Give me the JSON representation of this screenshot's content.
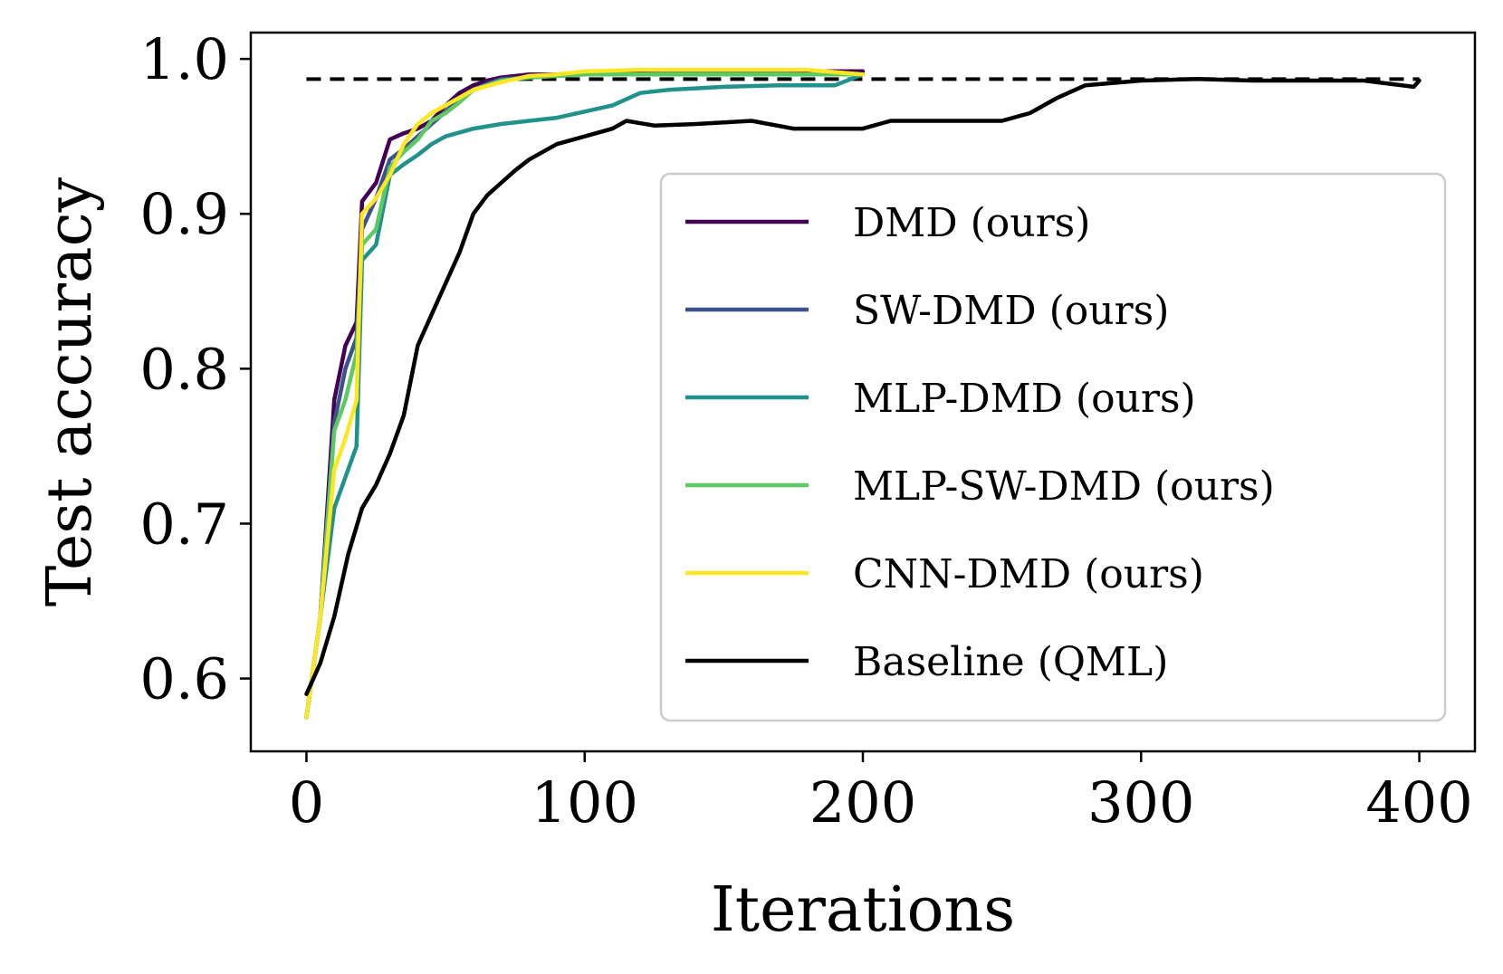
{
  "chart_data": {
    "type": "line",
    "xlabel": "Iterations",
    "ylabel": "Test accuracy",
    "xlim": [
      -20,
      420
    ],
    "ylim": [
      0.553,
      1.017
    ],
    "xticks": [
      0,
      100,
      200,
      300,
      400
    ],
    "xtick_labels": [
      "0",
      "100",
      "200",
      "300",
      "400"
    ],
    "yticks": [
      0.6,
      0.7,
      0.8,
      0.9,
      1.0
    ],
    "ytick_labels": [
      "0.6",
      "0.7",
      "0.8",
      "0.9",
      "1.0"
    ],
    "grid": false,
    "legend_position": "lower right",
    "reference_line": {
      "style": "dashed",
      "color": "#000000",
      "y": 0.987,
      "x_range": [
        0,
        400
      ]
    },
    "series": [
      {
        "name": "DMD (ours)",
        "color": "#440154",
        "x": [
          0,
          5,
          10,
          14,
          18,
          20,
          25,
          30,
          35,
          40,
          45,
          50,
          55,
          60,
          65,
          70,
          80,
          90,
          100,
          120,
          140,
          160,
          180,
          200
        ],
        "y": [
          0.575,
          0.64,
          0.78,
          0.815,
          0.83,
          0.908,
          0.92,
          0.948,
          0.952,
          0.955,
          0.96,
          0.97,
          0.978,
          0.983,
          0.986,
          0.988,
          0.99,
          0.99,
          0.991,
          0.992,
          0.992,
          0.992,
          0.992,
          0.992
        ]
      },
      {
        "name": "SW-DMD (ours)",
        "color": "#3b528b",
        "x": [
          0,
          5,
          10,
          14,
          18,
          20,
          25,
          30,
          35,
          40,
          45,
          50,
          55,
          60,
          65,
          70,
          80,
          90,
          100,
          120,
          140,
          160,
          180,
          200
        ],
        "y": [
          0.575,
          0.64,
          0.765,
          0.8,
          0.82,
          0.89,
          0.91,
          0.935,
          0.942,
          0.95,
          0.958,
          0.966,
          0.975,
          0.98,
          0.984,
          0.987,
          0.988,
          0.989,
          0.99,
          0.99,
          0.991,
          0.991,
          0.99,
          0.99
        ]
      },
      {
        "name": "MLP-DMD (ours)",
        "color": "#21918c",
        "x": [
          0,
          5,
          10,
          14,
          18,
          20,
          25,
          30,
          35,
          40,
          45,
          50,
          60,
          70,
          80,
          90,
          100,
          110,
          120,
          130,
          150,
          170,
          190,
          200
        ],
        "y": [
          0.575,
          0.64,
          0.71,
          0.73,
          0.75,
          0.87,
          0.88,
          0.925,
          0.932,
          0.938,
          0.945,
          0.95,
          0.955,
          0.958,
          0.96,
          0.962,
          0.966,
          0.97,
          0.978,
          0.98,
          0.982,
          0.983,
          0.983,
          0.99
        ]
      },
      {
        "name": "MLP-SW-DMD (ours)",
        "color": "#5ec962",
        "x": [
          0,
          5,
          10,
          14,
          18,
          20,
          25,
          30,
          35,
          40,
          45,
          50,
          55,
          60,
          70,
          80,
          90,
          100,
          120,
          140,
          160,
          180,
          200
        ],
        "y": [
          0.575,
          0.64,
          0.76,
          0.78,
          0.81,
          0.88,
          0.89,
          0.93,
          0.94,
          0.948,
          0.96,
          0.965,
          0.972,
          0.98,
          0.986,
          0.988,
          0.989,
          0.99,
          0.99,
          0.99,
          0.99,
          0.99,
          0.99
        ]
      },
      {
        "name": "CNN-DMD (ours)",
        "color": "#fde725",
        "x": [
          0,
          5,
          10,
          14,
          18,
          20,
          25,
          30,
          35,
          40,
          45,
          50,
          55,
          60,
          70,
          80,
          90,
          100,
          120,
          140,
          160,
          180,
          200
        ],
        "y": [
          0.575,
          0.64,
          0.735,
          0.755,
          0.78,
          0.9,
          0.91,
          0.925,
          0.945,
          0.958,
          0.965,
          0.97,
          0.975,
          0.98,
          0.985,
          0.989,
          0.99,
          0.992,
          0.993,
          0.993,
          0.993,
          0.993,
          0.99
        ]
      },
      {
        "name": "Baseline (QML)",
        "color": "#000000",
        "x": [
          0,
          5,
          10,
          15,
          20,
          25,
          30,
          35,
          40,
          45,
          50,
          55,
          60,
          65,
          70,
          75,
          80,
          90,
          100,
          110,
          115,
          125,
          140,
          160,
          175,
          200,
          210,
          240,
          250,
          260,
          270,
          280,
          300,
          320,
          340,
          360,
          380,
          398,
          400
        ],
        "y": [
          0.59,
          0.61,
          0.64,
          0.68,
          0.71,
          0.725,
          0.745,
          0.77,
          0.815,
          0.835,
          0.855,
          0.875,
          0.9,
          0.912,
          0.92,
          0.928,
          0.935,
          0.945,
          0.95,
          0.955,
          0.96,
          0.957,
          0.958,
          0.96,
          0.955,
          0.955,
          0.96,
          0.96,
          0.96,
          0.965,
          0.975,
          0.983,
          0.986,
          0.987,
          0.986,
          0.986,
          0.986,
          0.982,
          0.986
        ]
      }
    ]
  }
}
